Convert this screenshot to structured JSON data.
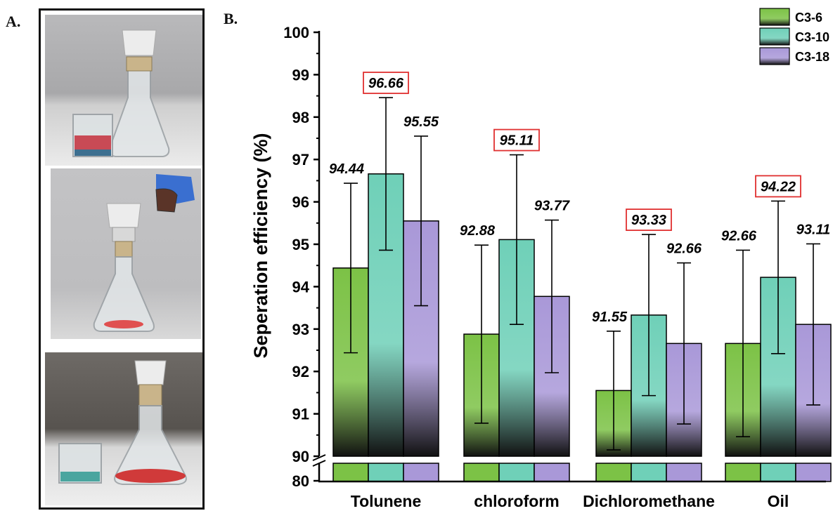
{
  "panel_a_label": "A.",
  "panel_b_label": "B.",
  "colors": {
    "C3-6": "#7cc246",
    "C3-10": "#6fd0b8",
    "C3-18": "#a998d8",
    "highlight_box": "#e03030"
  },
  "chart_data": {
    "type": "bar",
    "categories": [
      "Tolunene",
      "chloroform",
      "Dichloromethane",
      "Oil"
    ],
    "series": [
      {
        "name": "C3-6",
        "values": [
          94.44,
          92.88,
          91.55,
          92.66
        ],
        "errors": [
          2.0,
          2.1,
          1.4,
          2.2
        ],
        "labels": [
          "94.44",
          "92.88",
          "91.55",
          "92.66"
        ]
      },
      {
        "name": "C3-10",
        "values": [
          96.66,
          95.11,
          93.33,
          94.22
        ],
        "errors": [
          1.8,
          2.0,
          1.9,
          1.8
        ],
        "labels": [
          "96.66",
          "95.11",
          "93.33",
          "94.22"
        ]
      },
      {
        "name": "C3-18",
        "values": [
          95.55,
          93.77,
          92.66,
          93.11
        ],
        "errors": [
          2.0,
          1.8,
          1.9,
          1.9
        ],
        "labels": [
          "95.55",
          "93.77",
          "92.66",
          "93.11"
        ]
      }
    ],
    "highlighted_series": "C3-10",
    "ylabel": "Seperation efficiency (%)",
    "ylim": [
      90,
      100
    ],
    "yticks": [
      "90",
      "91",
      "92",
      "93",
      "94",
      "95",
      "96",
      "97",
      "98",
      "99",
      "100"
    ],
    "axis_break": true,
    "lower_tick": "80",
    "legend": "top-right",
    "grid": false
  }
}
